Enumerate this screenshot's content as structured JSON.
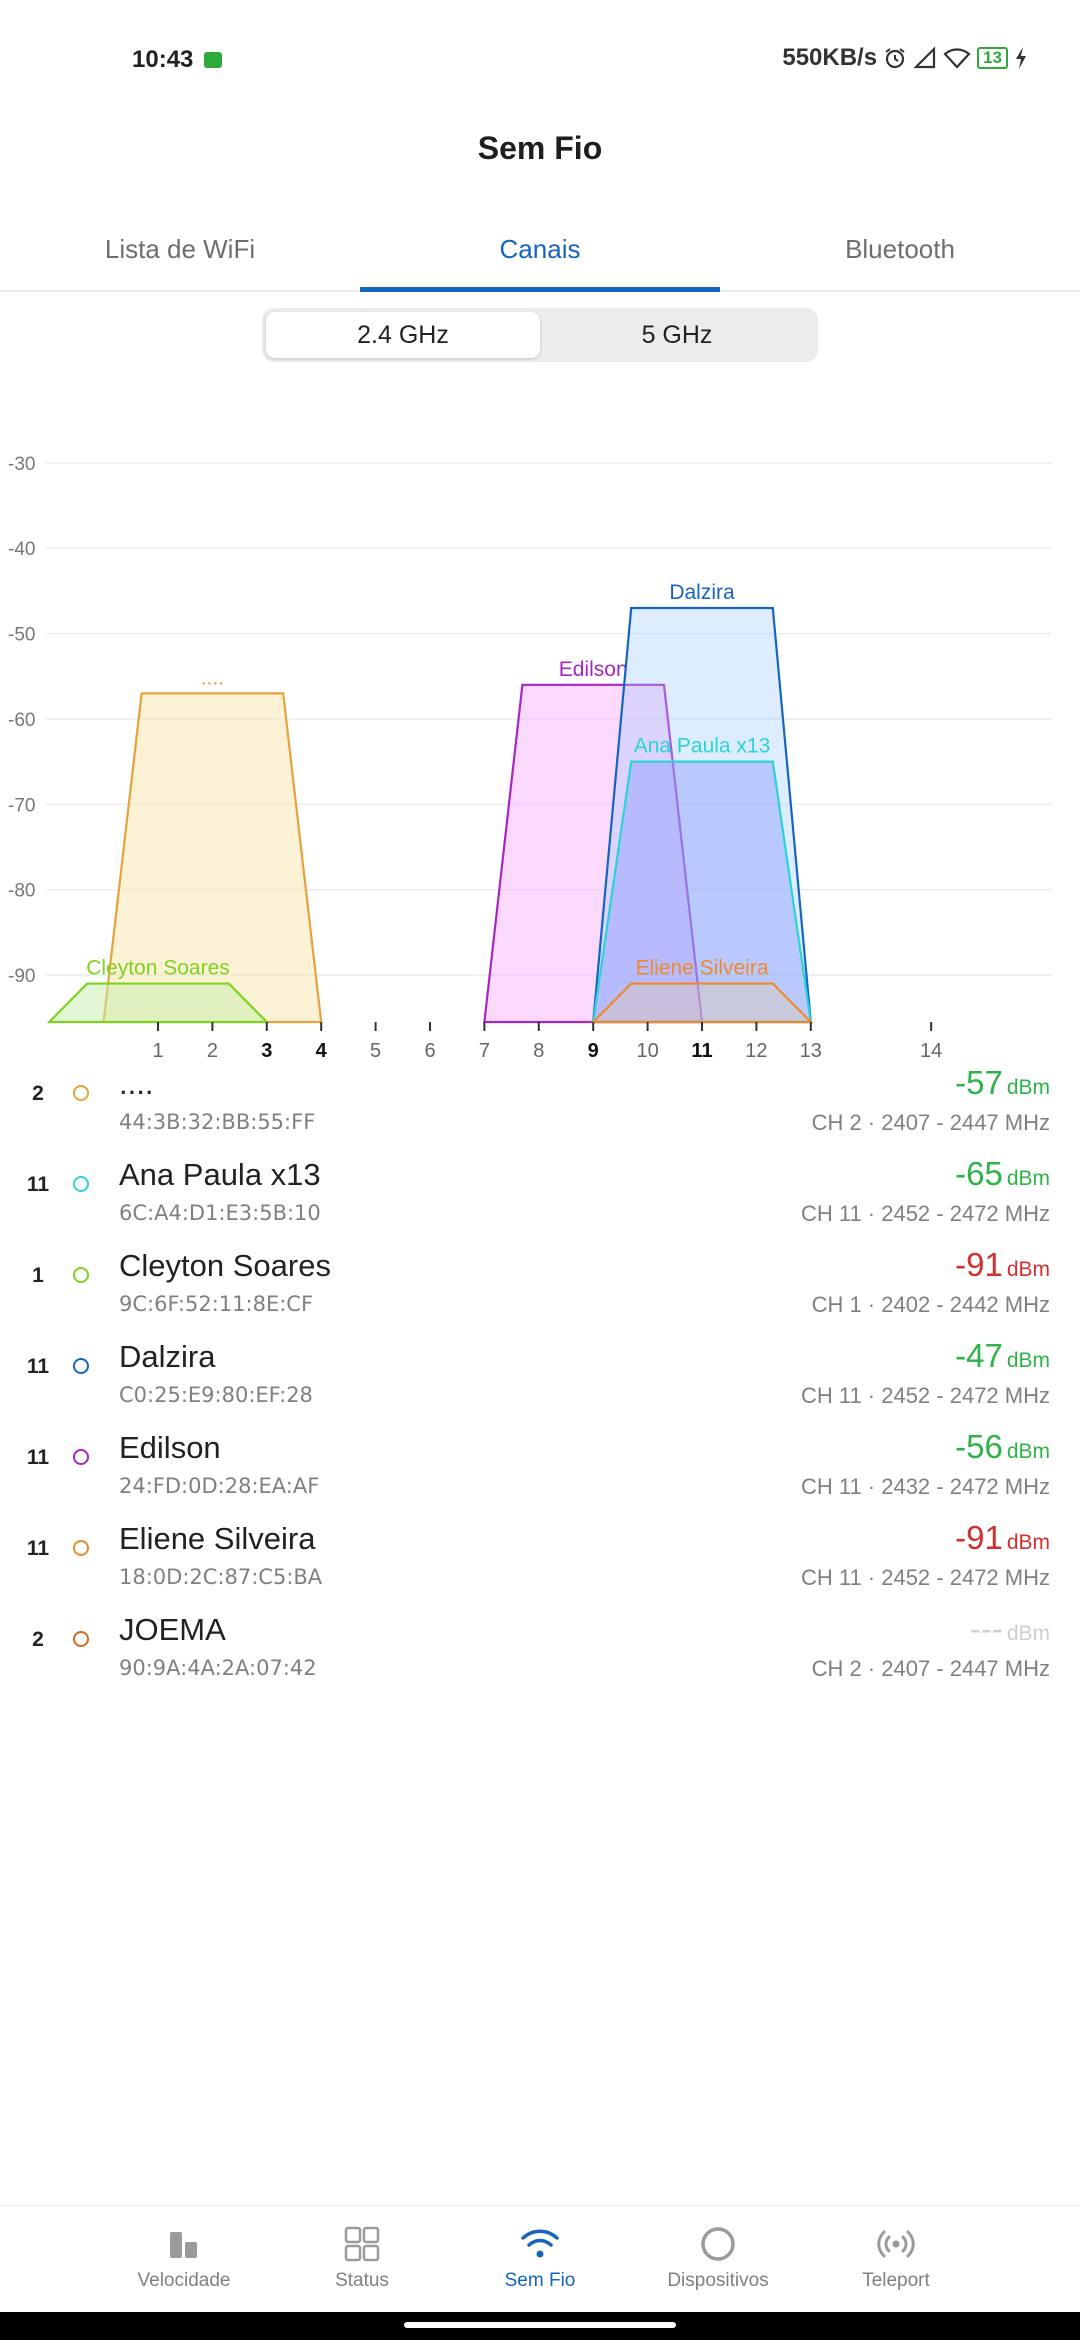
{
  "status_bar": {
    "time": "10:43",
    "speed": "550KB/s",
    "battery": "13",
    "icons": [
      "chat-icon",
      "alarm-icon",
      "signal-icon",
      "wifi-icon",
      "battery-icon",
      "charging-icon"
    ]
  },
  "title": "Sem Fio",
  "tabs": [
    {
      "label": "Lista de WiFi",
      "active": false
    },
    {
      "label": "Canais",
      "active": true
    },
    {
      "label": "Bluetooth",
      "active": false
    }
  ],
  "band_toggle": {
    "options": [
      "2.4 GHz",
      "5 GHz"
    ],
    "selected": "2.4 GHz"
  },
  "colors": {
    "accent": "#1565c0",
    "good": "#2eb34a",
    "bad": "#d32f2f",
    "muted": "#cfcfcf"
  },
  "chart_data": {
    "type": "area",
    "y_ticks": [
      "-30",
      "-40",
      "-50",
      "-60",
      "-70",
      "-80",
      "-90"
    ],
    "ylim": [
      -95.5,
      -26.5
    ],
    "x_ticks": [
      "1",
      "2",
      "3",
      "4",
      "5",
      "6",
      "7",
      "8",
      "9",
      "10",
      "11",
      "12",
      "13",
      "14"
    ],
    "x_bold_ticks": [
      "3",
      "4",
      "9",
      "11"
    ],
    "grid": true,
    "series": [
      {
        "name": "....",
        "center_channel": 2,
        "signal_dbm": -57,
        "color": "#e6a23c",
        "fill": "rgba(248,230,178,0.55)"
      },
      {
        "name": "Cleyton Soares",
        "center_channel": 1,
        "signal_dbm": -91,
        "color": "#7ed321",
        "fill": "rgba(200,240,170,0.5)"
      },
      {
        "name": "Edilson",
        "center_channel": 9,
        "signal_dbm": -56,
        "color": "#a626c4",
        "fill": "rgba(245,170,250,0.45)"
      },
      {
        "name": "Dalzira",
        "center_channel": 11,
        "signal_dbm": -47,
        "color": "#1565c0",
        "fill": "rgba(160,200,255,0.35)"
      },
      {
        "name": "Ana Paula x13",
        "center_channel": 11,
        "signal_dbm": -65,
        "color": "#2ad4d4",
        "fill": "rgba(130,150,250,0.4)"
      },
      {
        "name": "Eliene Silveira",
        "center_channel": 11,
        "signal_dbm": -91,
        "color": "#ef8a2c",
        "fill": "rgba(230,200,160,0.35)"
      }
    ]
  },
  "networks": [
    {
      "channel": "2",
      "name": "....",
      "mac": "44:3B:32:BB:55:FF",
      "signal": "-57",
      "unit": "dBm",
      "freq": "CH 2 · 2407 - 2447 MHz",
      "color": "#e6a23c",
      "signal_color": "#2eb34a"
    },
    {
      "channel": "11",
      "name": "Ana Paula x13",
      "mac": "6C:A4:D1:E3:5B:10",
      "signal": "-65",
      "unit": "dBm",
      "freq": "CH 11 · 2452 - 2472 MHz",
      "color": "#2ad4d4",
      "signal_color": "#2eb34a"
    },
    {
      "channel": "1",
      "name": "Cleyton Soares",
      "mac": "9C:6F:52:11:8E:CF",
      "signal": "-91",
      "unit": "dBm",
      "freq": "CH 1 · 2402 - 2442 MHz",
      "color": "#7ed321",
      "signal_color": "#d32f2f"
    },
    {
      "channel": "11",
      "name": "Dalzira",
      "mac": "C0:25:E9:80:EF:28",
      "signal": "-47",
      "unit": "dBm",
      "freq": "CH 11 · 2452 - 2472 MHz",
      "color": "#1565c0",
      "signal_color": "#2eb34a"
    },
    {
      "channel": "11",
      "name": "Edilson",
      "mac": "24:FD:0D:28:EA:AF",
      "signal": "-56",
      "unit": "dBm",
      "freq": "CH 11 · 2432 - 2472 MHz",
      "color": "#a626c4",
      "signal_color": "#2eb34a"
    },
    {
      "channel": "11",
      "name": "Eliene Silveira",
      "mac": "18:0D:2C:87:C5:BA",
      "signal": "-91",
      "unit": "dBm",
      "freq": "CH 11 · 2452 - 2472 MHz",
      "color": "#ef8a2c",
      "signal_color": "#d32f2f"
    },
    {
      "channel": "2",
      "name": "JOEMA",
      "mac": "90:9A:4A:2A:07:42",
      "signal": "---",
      "unit": "dBm",
      "freq": "CH 2 · 2407 - 2447 MHz",
      "color": "#d9681e",
      "signal_color": "#cfcfcf"
    }
  ],
  "bottom_nav": [
    {
      "label": "Velocidade",
      "icon": "speed-bars-icon",
      "active": false
    },
    {
      "label": "Status",
      "icon": "grid-icon",
      "active": false
    },
    {
      "label": "Sem Fio",
      "icon": "wifi-icon",
      "active": true
    },
    {
      "label": "Dispositivos",
      "icon": "circle-icon",
      "active": false
    },
    {
      "label": "Teleport",
      "icon": "teleport-icon",
      "active": false
    }
  ]
}
